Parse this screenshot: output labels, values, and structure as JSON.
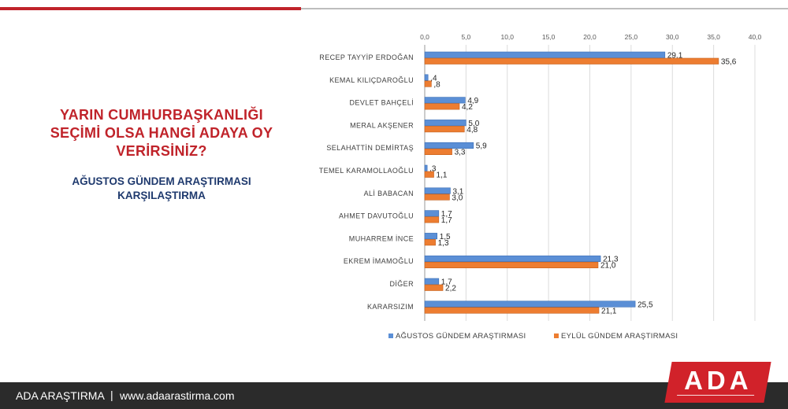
{
  "slide": {
    "title": "YARIN CUMHURBAŞKANLIĞI SEÇİMİ OLSA HANGİ ADAYA OY VERİRSİNİZ?",
    "subtitle": "AĞUSTOS GÜNDEM ARAŞTIRMASI KARŞILAŞTIRMA"
  },
  "footer": {
    "brand": "ADA ARAŞTIRMA",
    "separator": "|",
    "url": "www.adaarastirma.com"
  },
  "logo": {
    "text": "ADA",
    "color": "#d1222a"
  },
  "chart_data": {
    "type": "bar",
    "orientation": "horizontal",
    "categories": [
      "RECEP TAYYİP ERDOĞAN",
      "KEMAL KILIÇDAROĞLU",
      "DEVLET BAHÇELİ",
      "MERAL AKŞENER",
      "SELAHATTİN DEMİRTAŞ",
      "TEMEL KARAMOLLAOĞLU",
      "ALİ BABACAN",
      "AHMET DAVUTOĞLU",
      "MUHARREM İNCE",
      "EKREM İMAMOĞLU",
      "DİĞER",
      "KARARSIZIM"
    ],
    "series": [
      {
        "name": "AĞUSTOS GÜNDEM ARAŞTIRMASI",
        "color": "#5b8fd6",
        "values": [
          29.1,
          0.4,
          4.9,
          5.0,
          5.9,
          0.3,
          3.1,
          1.7,
          1.5,
          21.3,
          1.7,
          25.5
        ],
        "labels": [
          "29,1",
          ",4",
          "4,9",
          "5,0",
          "5,9",
          ",3",
          "3,1",
          "1,7",
          "1,5",
          "21,3",
          "1,7",
          "25,5"
        ]
      },
      {
        "name": "EYLÜL GÜNDEM ARAŞTIRMASI",
        "color": "#ed7d31",
        "values": [
          35.6,
          0.8,
          4.2,
          4.8,
          3.3,
          1.1,
          3.0,
          1.7,
          1.3,
          21.0,
          2.2,
          21.1
        ],
        "labels": [
          "35,6",
          ",8",
          "4,2",
          "4,8",
          "3,3",
          "1,1",
          "3,0",
          "1,7",
          "1,3",
          "21,0",
          "2,2",
          "21,1"
        ]
      }
    ],
    "xlim": [
      0,
      40
    ],
    "ticks": [
      0,
      5,
      10,
      15,
      20,
      25,
      30,
      35,
      40
    ],
    "tick_labels": [
      "0,0",
      "5,0",
      "10,0",
      "15,0",
      "20,0",
      "25,0",
      "30,0",
      "35,0",
      "40,0"
    ],
    "axis_position": "top",
    "grid": true,
    "legend": "bottom"
  }
}
